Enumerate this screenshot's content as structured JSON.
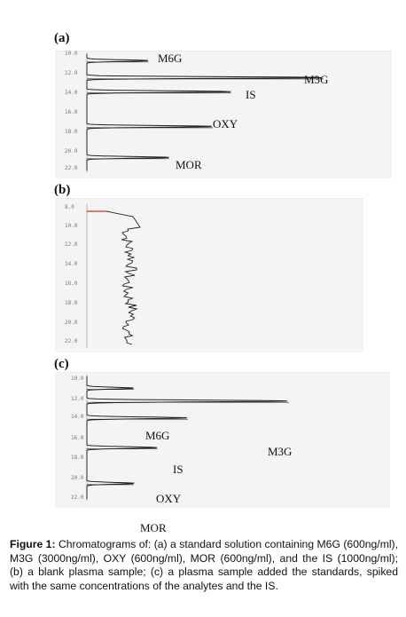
{
  "panels": [
    {
      "letter": "(a)",
      "ticks": [
        "10.0",
        "12.0",
        "14.0",
        "16.0",
        "18.0",
        "20.0",
        "22.0"
      ],
      "peaks": [
        {
          "name": "M6G",
          "time": 10.5,
          "height": 0.24
        },
        {
          "name": "M3G",
          "time": 12.3,
          "height": 0.92
        },
        {
          "name": "IS",
          "time": 13.8,
          "height": 0.56
        },
        {
          "name": "OXY",
          "time": 17.5,
          "height": 0.49
        },
        {
          "name": "MOR",
          "time": 20.8,
          "height": 0.32
        }
      ]
    },
    {
      "letter": "(b)",
      "ticks": [
        "8.0",
        "10.0",
        "12.0",
        "14.0",
        "16.0",
        "18.0",
        "20.0",
        "22.0"
      ],
      "peaks": []
    },
    {
      "letter": "(c)",
      "ticks": [
        "10.0",
        "12.0",
        "14.0",
        "16.0",
        "18.0",
        "20.0",
        "22.0"
      ],
      "peaks": [
        {
          "name": "M6G",
          "time": 11.0,
          "height": 0.2
        },
        {
          "name": "M3G",
          "time": 12.3,
          "height": 0.86
        },
        {
          "name": "IS",
          "time": 14.0,
          "height": 0.43
        },
        {
          "name": "OXY",
          "time": 17.0,
          "height": 0.3
        },
        {
          "name": "MOR",
          "time": 20.6,
          "height": 0.2
        }
      ]
    }
  ],
  "caption": {
    "lead": "Figure 1:",
    "text": " Chromatograms of: (a) a standard solution containing M6G (600ng/ml), M3G (3000ng/ml), OXY (600ng/ml), MOR (600ng/ml), and the IS (1000ng/ml); (b) a blank plasma sample; (c) a plasma sample added the standards, spiked with the same concentrations of the analytes and the IS."
  },
  "colors": {
    "trace": "#222222",
    "baseline_start": "#c0392b",
    "panel_bg": "#f4f4f4"
  }
}
